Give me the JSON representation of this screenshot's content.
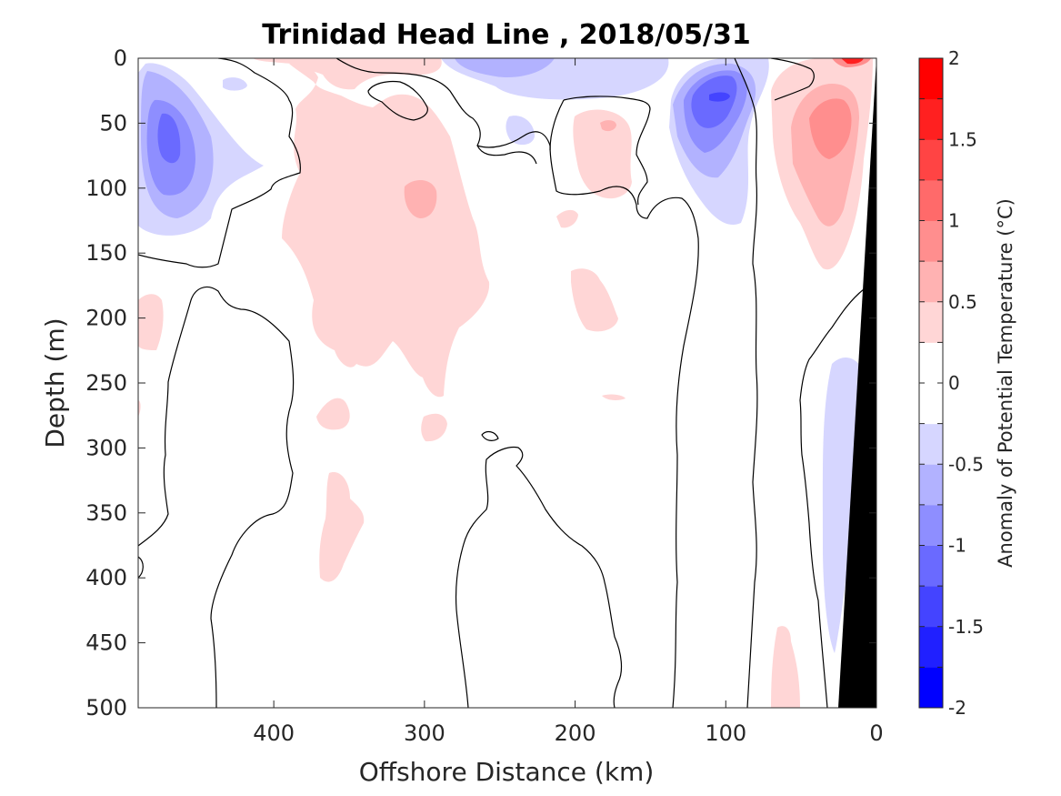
{
  "chart_data": {
    "type": "contour",
    "title": "Trinidad Head Line , 2018/05/31",
    "xlabel": "Offshore Distance (km)",
    "ylabel": "Depth (m)",
    "xlim": [
      490,
      0
    ],
    "ylim": [
      0,
      500
    ],
    "x_reversed": true,
    "y_reversed": true,
    "xticks": [
      400,
      300,
      200,
      100,
      0
    ],
    "yticks": [
      0,
      50,
      100,
      150,
      200,
      250,
      300,
      350,
      400,
      450,
      500
    ],
    "colorbar": {
      "label": "Anomaly of Potential Temperature (°C)",
      "range": [
        -2,
        2
      ],
      "step": 0.25,
      "ticks": [
        2,
        1.5,
        1,
        0.5,
        0,
        -0.5,
        -1,
        -1.5,
        -2
      ],
      "tick_labels": [
        "2",
        "1.5",
        "1",
        "0.5",
        "0",
        "-0.5",
        "-1",
        "-1.5",
        "-2"
      ],
      "colormap": "blue-white-red",
      "colors": [
        "#0000ff",
        "#2020ff",
        "#4444ff",
        "#6a6aff",
        "#8e8eff",
        "#b2b2ff",
        "#d6d6ff",
        "#ffffff",
        "#ffffff",
        "#ffd6d6",
        "#ffb2b2",
        "#ff8e8e",
        "#ff6a6a",
        "#ff4444",
        "#ff2020",
        "#ff0000"
      ]
    },
    "anomaly_regions": [
      {
        "desc": "surface cold core",
        "x_range": [
          480,
          440
        ],
        "depth_range": [
          5,
          135
        ],
        "min_value": -1.0
      },
      {
        "desc": "nearshore cold core",
        "x_range": [
          130,
          70
        ],
        "depth_range": [
          0,
          125
        ],
        "min_value": -1.5
      },
      {
        "desc": "offshore surface cold patch",
        "x_range": [
          300,
          190
        ],
        "depth_range": [
          0,
          60
        ],
        "min_value": -0.5
      },
      {
        "desc": "slope cold band",
        "x_range": [
          40,
          20
        ],
        "depth_range": [
          230,
          460
        ],
        "min_value": -0.5
      },
      {
        "desc": "central warm body",
        "x_range": [
          400,
          240
        ],
        "depth_range": [
          0,
          265
        ],
        "max_value": 0.75
      },
      {
        "desc": "nearshore warm core",
        "x_range": [
          75,
          15
        ],
        "depth_range": [
          0,
          165
        ],
        "max_value": 1.25
      },
      {
        "desc": "surface warm maximum",
        "x_range": [
          30,
          5
        ],
        "depth_range": [
          0,
          8
        ],
        "max_value": 2.0
      },
      {
        "desc": "deep warm patches",
        "x_range": [
          370,
          330
        ],
        "depth_range": [
          315,
          400
        ],
        "max_value": 0.5
      }
    ],
    "bathymetry": {
      "color": "#000000",
      "profile": [
        {
          "x": 2,
          "depth": 0
        },
        {
          "x": 27,
          "depth": 500
        }
      ]
    },
    "zero_contour": true
  }
}
